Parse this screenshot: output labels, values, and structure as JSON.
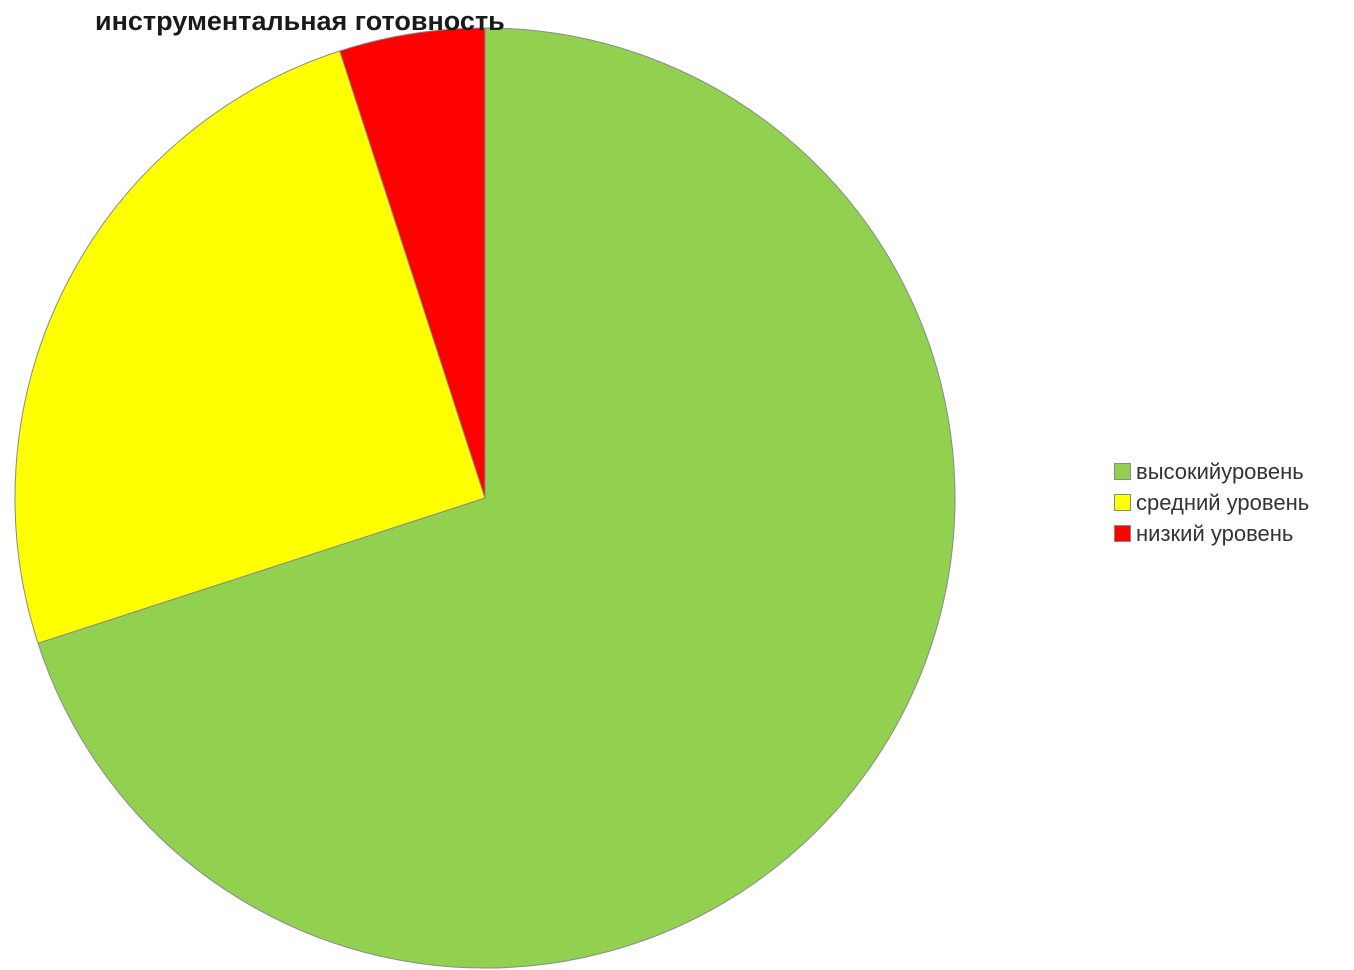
{
  "chart_data": {
    "type": "pie",
    "title": "инструментальная готовность",
    "categories": [
      "высокийуровень",
      "средний уровень",
      "низкий уровень"
    ],
    "values": [
      70,
      25,
      5
    ],
    "colors": [
      "#92d050",
      "#ffff00",
      "#ff0000"
    ],
    "start_angle": "12 o'clock",
    "direction": "clockwise",
    "legend_position": "right"
  }
}
